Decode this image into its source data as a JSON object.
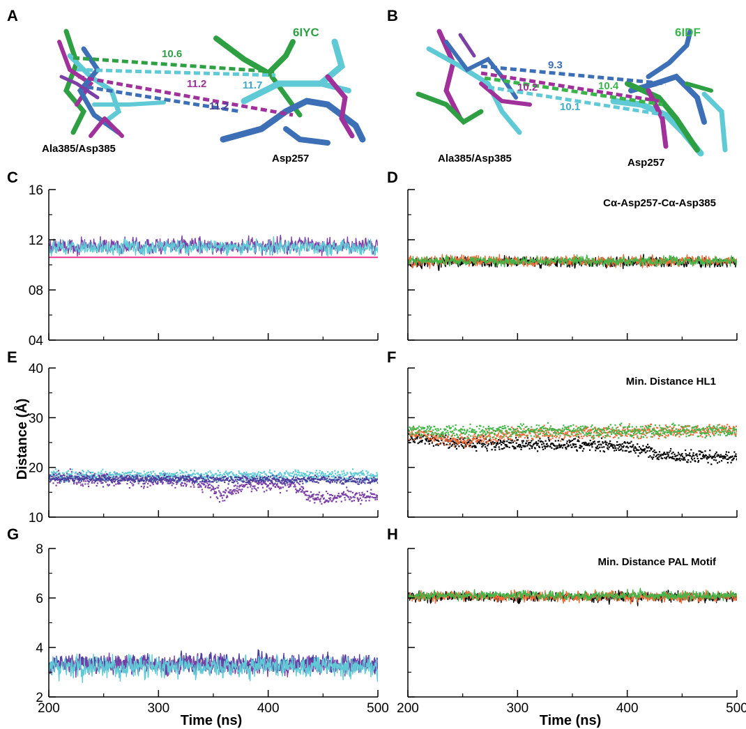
{
  "panel_labels": [
    "A",
    "B",
    "C",
    "D",
    "E",
    "F",
    "G",
    "H"
  ],
  "structure_a": {
    "pdb_id": "6IYC",
    "residue_left": "Ala385/Asp385",
    "residue_right": "Asp257",
    "distances": [
      {
        "text": "10.6",
        "color": "#2ea043"
      },
      {
        "text": "11.2",
        "color": "#a0309a"
      },
      {
        "text": "11.7",
        "color": "#3fa9c9"
      },
      {
        "text": "11.2",
        "color": "#4b3f9e"
      }
    ]
  },
  "structure_b": {
    "pdb_id": "6IDF",
    "residue_left": "Ala385/Asp385",
    "residue_right": "Asp257",
    "distances": [
      {
        "text": "9.3",
        "color": "#3d6fb6"
      },
      {
        "text": "10.2",
        "color": "#a0309a"
      },
      {
        "text": "10.4",
        "color": "#39b54a"
      },
      {
        "text": "10.1",
        "color": "#3fa9c9"
      }
    ]
  },
  "y_axis_title": "Distance (Å)",
  "x_axis_title": "Time (ns)",
  "colors": {
    "purple": "#7b3fa6",
    "cyan": "#5fcad6",
    "pink": "#e8368f",
    "black": "#000000",
    "orange": "#f26a35",
    "green": "#43b649"
  },
  "chart_data": [
    {
      "panel": "C",
      "type": "line",
      "title": "",
      "xlim": [
        200,
        500
      ],
      "ylim": [
        4,
        16
      ],
      "yticks": [
        4,
        8,
        12,
        16
      ],
      "ytick_labels": [
        "04",
        "08",
        "12",
        "16"
      ],
      "xticks": [
        200,
        300,
        400,
        500
      ],
      "xtick_labels": [],
      "series": [
        {
          "color": "#7b3fa6",
          "mean": 11.5,
          "noise": 0.45,
          "style": "line"
        },
        {
          "color": "#5fcad6",
          "mean": 11.4,
          "noise": 0.4,
          "style": "line"
        }
      ],
      "reference_line": {
        "y": 10.6,
        "color": "#e8368f"
      }
    },
    {
      "panel": "D",
      "type": "line",
      "title": "Cα-Asp257-Cα-Asp385",
      "xlim": [
        200,
        500
      ],
      "ylim": [
        4,
        16
      ],
      "yticks": [
        4,
        8,
        12,
        16
      ],
      "ytick_labels": [],
      "xticks": [
        200,
        300,
        400,
        500
      ],
      "xtick_labels": [],
      "series": [
        {
          "color": "#000000",
          "mean": 10.2,
          "noise": 0.3,
          "style": "line"
        },
        {
          "color": "#f26a35",
          "mean": 10.3,
          "noise": 0.3,
          "style": "line"
        },
        {
          "color": "#43b649",
          "mean": 10.3,
          "noise": 0.25,
          "style": "line"
        }
      ]
    },
    {
      "panel": "E",
      "type": "scatter",
      "title": "",
      "xlim": [
        200,
        500
      ],
      "ylim": [
        10,
        40
      ],
      "yticks": [
        10,
        20,
        30,
        40
      ],
      "ytick_labels": [
        "10",
        "20",
        "30",
        "40"
      ],
      "xticks": [
        200,
        300,
        400,
        500
      ],
      "xtick_labels": [],
      "series": [
        {
          "color": "#7b3fa6",
          "segments": [
            [
              200,
              18
            ],
            [
              330,
              17.5
            ],
            [
              360,
              14.5
            ],
            [
              380,
              17
            ],
            [
              420,
              16.5
            ],
            [
              440,
              14
            ],
            [
              500,
              14.5
            ]
          ],
          "noise": 1.1,
          "style": "dots"
        },
        {
          "color": "#5fcad6",
          "segments": [
            [
              200,
              18.5
            ],
            [
              500,
              18.5
            ]
          ],
          "noise": 0.9,
          "style": "dots"
        },
        {
          "color": "#4b3f9e",
          "segments": [
            [
              200,
              18
            ],
            [
              500,
              17.5
            ]
          ],
          "noise": 0.6,
          "style": "dots"
        }
      ]
    },
    {
      "panel": "F",
      "type": "scatter",
      "title": "Min. Distance HL1",
      "xlim": [
        200,
        500
      ],
      "ylim": [
        10,
        40
      ],
      "yticks": [
        10,
        20,
        30,
        40
      ],
      "ytick_labels": [],
      "xticks": [
        200,
        300,
        400,
        500
      ],
      "xtick_labels": [],
      "series": [
        {
          "color": "#000000",
          "segments": [
            [
              200,
              26
            ],
            [
              260,
              25
            ],
            [
              400,
              24.5
            ],
            [
              430,
              22.5
            ],
            [
              500,
              22
            ]
          ],
          "noise": 1.0,
          "style": "dots"
        },
        {
          "color": "#f26a35",
          "segments": [
            [
              200,
              27
            ],
            [
              250,
              25.5
            ],
            [
              300,
              27
            ],
            [
              500,
              27.5
            ]
          ],
          "noise": 1.0,
          "style": "dots"
        },
        {
          "color": "#43b649",
          "segments": [
            [
              200,
              27.5
            ],
            [
              500,
              27.5
            ]
          ],
          "noise": 1.0,
          "style": "dots"
        }
      ]
    },
    {
      "panel": "G",
      "type": "line",
      "title": "",
      "xlim": [
        200,
        500
      ],
      "ylim": [
        2,
        8
      ],
      "yticks": [
        2,
        4,
        6,
        8
      ],
      "ytick_labels": [
        "2",
        "4",
        "6",
        "8"
      ],
      "xticks": [
        200,
        300,
        400,
        500
      ],
      "xtick_labels": [
        "200",
        "300",
        "400",
        "500"
      ],
      "series": [
        {
          "color": "#4b3f9e",
          "mean": 3.35,
          "noise": 0.25,
          "style": "line"
        },
        {
          "color": "#7b3fa6",
          "mean": 3.3,
          "noise": 0.25,
          "style": "line"
        },
        {
          "color": "#5fcad6",
          "mean": 3.2,
          "noise": 0.3,
          "style": "line"
        }
      ]
    },
    {
      "panel": "H",
      "type": "line",
      "title": "Min. Distance PAL Motif",
      "xlim": [
        200,
        500
      ],
      "ylim": [
        2,
        8
      ],
      "yticks": [
        2,
        4,
        6,
        8
      ],
      "ytick_labels": [],
      "xticks": [
        200,
        300,
        400,
        500
      ],
      "xtick_labels": [
        "200",
        "300",
        "400",
        "500"
      ],
      "series": [
        {
          "color": "#000000",
          "mean": 6.05,
          "noise": 0.15,
          "style": "line"
        },
        {
          "color": "#f26a35",
          "mean": 6.05,
          "noise": 0.15,
          "style": "line"
        },
        {
          "color": "#43b649",
          "mean": 6.1,
          "noise": 0.13,
          "style": "line"
        }
      ]
    }
  ]
}
